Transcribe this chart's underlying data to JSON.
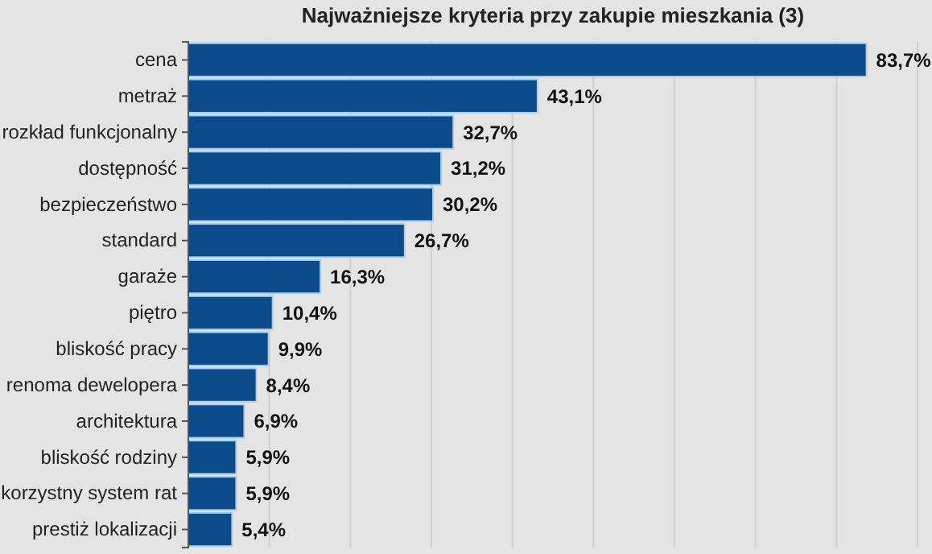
{
  "chart_data": {
    "type": "bar",
    "orientation": "horizontal",
    "title": "Najważniejsze kryteria przy zakupie mieszkania (3)",
    "categories": [
      "cena",
      "metraż",
      "rozkład funkcjonalny",
      "dostępność",
      "bezpieczeństwo",
      "standard",
      "garaże",
      "piętro",
      "bliskość pracy",
      "renoma dewelopera",
      "architektura",
      "bliskość rodziny",
      "korzystny system rat",
      "prestiż lokalizacji"
    ],
    "values": [
      83.7,
      43.1,
      32.7,
      31.2,
      30.2,
      26.7,
      16.3,
      10.4,
      9.9,
      8.4,
      6.9,
      5.9,
      5.9,
      5.4
    ],
    "value_labels": [
      "83,7%",
      "43,1%",
      "32,7%",
      "31,2%",
      "30,2%",
      "26,7%",
      "16,3%",
      "10,4%",
      "9,9%",
      "8,4%",
      "6,9%",
      "5,9%",
      "5,9%",
      "5,4%"
    ],
    "color": "#0b4a8b",
    "xlim": [
      0,
      90
    ],
    "xticks": [
      {
        "value": 10,
        "label": null
      },
      {
        "value": 20,
        "label": null
      },
      {
        "value": 30,
        "label": null
      },
      {
        "value": 40,
        "label": null
      },
      {
        "value": 50,
        "label": null
      },
      {
        "value": 60,
        "label": null
      },
      {
        "value": 70,
        "label": null
      },
      {
        "value": 80,
        "label": null
      },
      {
        "value": 90,
        "label": null
      }
    ],
    "grid": "x",
    "tick_labels": "y"
  }
}
